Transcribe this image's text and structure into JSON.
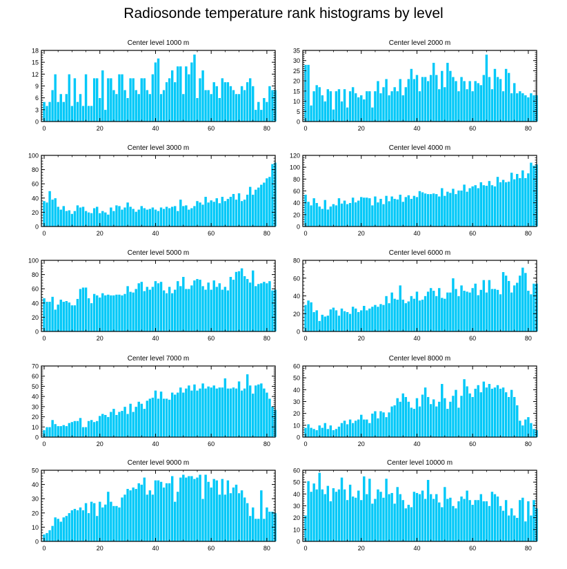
{
  "title": "Radiosonde temperature rank histograms by level",
  "colors": {
    "bar": "#00c8f8",
    "bar_edge": "#ffffff",
    "axis": "#000000",
    "background": "#ffffff"
  },
  "chart_data": [
    {
      "type": "bar",
      "title": "Center level 1000 m",
      "xlabel": "",
      "ylabel": "",
      "xlim": [
        -1,
        83
      ],
      "ylim": [
        0,
        18
      ],
      "xticks": [
        0,
        20,
        40,
        60,
        80
      ],
      "yticks": [
        0,
        3,
        6,
        9,
        12,
        15,
        18
      ],
      "values": [
        5,
        4,
        5,
        8,
        12,
        5,
        7,
        5,
        7,
        12,
        4,
        11,
        5,
        7,
        4,
        12,
        4,
        4,
        11,
        11,
        6,
        13,
        3,
        11,
        11,
        8,
        7,
        12,
        12,
        8,
        6,
        11,
        11,
        8,
        7,
        11,
        11,
        8,
        7,
        12,
        15,
        16,
        7,
        8,
        10,
        11,
        13,
        10,
        14,
        14,
        7,
        14,
        12,
        15,
        17,
        6,
        11,
        13,
        8,
        8,
        7,
        10,
        9,
        6,
        11,
        10,
        10,
        9,
        8,
        7,
        7,
        9,
        8,
        10,
        11,
        9,
        3,
        5,
        3,
        6,
        5,
        9,
        8,
        8
      ]
    },
    {
      "type": "bar",
      "title": "Center level 2000 m",
      "xlabel": "",
      "ylabel": "",
      "xlim": [
        -1,
        83
      ],
      "ylim": [
        0,
        35
      ],
      "xticks": [
        0,
        20,
        40,
        60,
        80
      ],
      "yticks": [
        0,
        5,
        10,
        15,
        20,
        25,
        30,
        35
      ],
      "values": [
        28,
        28,
        8,
        15,
        18,
        17,
        13,
        10,
        16,
        15,
        6,
        15,
        16,
        10,
        16,
        7,
        15,
        17,
        14,
        12,
        13,
        11,
        15,
        15,
        7,
        15,
        20,
        14,
        17,
        21,
        13,
        15,
        17,
        15,
        21,
        13,
        17,
        21,
        26,
        21,
        23,
        15,
        22,
        22,
        20,
        23,
        29,
        23,
        16,
        25,
        17,
        29,
        25,
        22,
        20,
        15,
        22,
        20,
        16,
        20,
        15,
        20,
        19,
        18,
        23,
        33,
        22,
        16,
        26,
        22,
        21,
        15,
        26,
        24,
        14,
        19,
        14,
        15,
        14,
        13,
        12,
        14,
        13,
        13
      ]
    },
    {
      "type": "bar",
      "title": "Center level 3000 m",
      "xlabel": "",
      "ylabel": "",
      "xlim": [
        -1,
        83
      ],
      "ylim": [
        0,
        100
      ],
      "xticks": [
        0,
        20,
        40,
        60,
        80
      ],
      "yticks": [
        0,
        20,
        40,
        60,
        80,
        100
      ],
      "values": [
        36,
        34,
        50,
        38,
        40,
        28,
        24,
        29,
        22,
        23,
        18,
        22,
        30,
        27,
        28,
        22,
        20,
        19,
        26,
        28,
        19,
        22,
        20,
        17,
        27,
        22,
        30,
        29,
        24,
        27,
        34,
        28,
        25,
        21,
        24,
        29,
        26,
        24,
        25,
        27,
        24,
        22,
        27,
        25,
        28,
        26,
        28,
        29,
        22,
        38,
        29,
        30,
        24,
        26,
        29,
        36,
        34,
        31,
        42,
        34,
        37,
        35,
        40,
        33,
        42,
        36,
        39,
        42,
        46,
        38,
        47,
        36,
        38,
        45,
        56,
        45,
        52,
        55,
        59,
        62,
        68,
        70,
        88,
        90
      ]
    },
    {
      "type": "bar",
      "title": "Center level 4000 m",
      "xlabel": "",
      "ylabel": "",
      "xlim": [
        -1,
        83
      ],
      "ylim": [
        0,
        120
      ],
      "xticks": [
        0,
        20,
        40,
        60,
        80
      ],
      "yticks": [
        0,
        20,
        40,
        60,
        80,
        100,
        120
      ],
      "values": [
        54,
        42,
        36,
        48,
        40,
        34,
        30,
        45,
        29,
        34,
        38,
        36,
        48,
        39,
        44,
        38,
        40,
        49,
        41,
        44,
        50,
        49,
        49,
        48,
        36,
        51,
        41,
        47,
        38,
        52,
        43,
        51,
        47,
        46,
        54,
        42,
        50,
        53,
        47,
        52,
        50,
        60,
        58,
        56,
        55,
        55,
        56,
        55,
        51,
        65,
        52,
        59,
        57,
        64,
        55,
        61,
        61,
        71,
        59,
        65,
        68,
        70,
        65,
        75,
        70,
        69,
        77,
        70,
        68,
        84,
        75,
        79,
        75,
        76,
        91,
        80,
        89,
        82,
        95,
        82,
        90,
        108,
        103,
        105
      ]
    },
    {
      "type": "bar",
      "title": "Center level 5000 m",
      "xlabel": "",
      "ylabel": "",
      "xlim": [
        -1,
        83
      ],
      "ylim": [
        0,
        100
      ],
      "xticks": [
        0,
        20,
        40,
        60,
        80
      ],
      "yticks": [
        0,
        20,
        40,
        60,
        80,
        100
      ],
      "values": [
        47,
        42,
        42,
        49,
        31,
        38,
        45,
        42,
        43,
        41,
        37,
        37,
        46,
        60,
        62,
        62,
        47,
        40,
        53,
        51,
        48,
        54,
        51,
        52,
        51,
        51,
        52,
        52,
        51,
        53,
        64,
        56,
        55,
        60,
        68,
        70,
        57,
        63,
        59,
        63,
        71,
        68,
        70,
        58,
        54,
        63,
        54,
        59,
        71,
        64,
        77,
        60,
        60,
        65,
        72,
        74,
        73,
        64,
        59,
        69,
        59,
        72,
        63,
        68,
        59,
        63,
        58,
        77,
        73,
        84,
        85,
        89,
        78,
        74,
        69,
        86,
        64,
        67,
        68,
        70,
        68,
        71,
        58,
        59
      ]
    },
    {
      "type": "bar",
      "title": "Center level 6000 m",
      "xlabel": "",
      "ylabel": "",
      "xlim": [
        -1,
        83
      ],
      "ylim": [
        0,
        80
      ],
      "xticks": [
        0,
        20,
        40,
        60,
        80
      ],
      "yticks": [
        0,
        20,
        40,
        60,
        80
      ],
      "values": [
        30,
        35,
        33,
        22,
        24,
        12,
        19,
        17,
        18,
        25,
        27,
        24,
        18,
        26,
        23,
        22,
        20,
        28,
        26,
        22,
        24,
        29,
        24,
        26,
        28,
        30,
        28,
        31,
        30,
        40,
        32,
        44,
        37,
        36,
        52,
        36,
        32,
        34,
        40,
        37,
        45,
        35,
        36,
        40,
        45,
        49,
        46,
        40,
        49,
        38,
        37,
        44,
        44,
        60,
        48,
        40,
        52,
        46,
        45,
        44,
        49,
        54,
        41,
        47,
        58,
        44,
        58,
        48,
        48,
        47,
        42,
        67,
        63,
        57,
        44,
        52,
        55,
        63,
        72,
        66,
        46,
        42,
        54,
        54
      ]
    },
    {
      "type": "bar",
      "title": "Center level 7000 m",
      "xlabel": "",
      "ylabel": "",
      "xlim": [
        -1,
        83
      ],
      "ylim": [
        0,
        70
      ],
      "xticks": [
        0,
        20,
        40,
        60,
        80
      ],
      "yticks": [
        0,
        10,
        20,
        30,
        40,
        50,
        60,
        70
      ],
      "values": [
        7,
        10,
        10,
        17,
        13,
        11,
        11,
        12,
        11,
        14,
        15,
        16,
        16,
        19,
        10,
        10,
        16,
        17,
        15,
        16,
        21,
        23,
        22,
        20,
        25,
        28,
        22,
        25,
        26,
        30,
        23,
        33,
        25,
        30,
        35,
        33,
        28,
        36,
        38,
        39,
        46,
        38,
        45,
        38,
        38,
        37,
        44,
        42,
        44,
        49,
        44,
        48,
        51,
        46,
        52,
        46,
        48,
        53,
        48,
        50,
        49,
        51,
        48,
        49,
        49,
        58,
        48,
        48,
        49,
        48,
        55,
        46,
        48,
        62,
        51,
        43,
        51,
        52,
        53,
        48,
        44,
        38,
        30,
        27
      ]
    },
    {
      "type": "bar",
      "title": "Center level 8000 m",
      "xlabel": "",
      "ylabel": "",
      "xlim": [
        -1,
        83
      ],
      "ylim": [
        0,
        60
      ],
      "xticks": [
        0,
        20,
        40,
        60,
        80
      ],
      "yticks": [
        0,
        10,
        20,
        30,
        40,
        50,
        60
      ],
      "values": [
        8,
        11,
        8,
        7,
        6,
        10,
        8,
        12,
        7,
        10,
        6,
        7,
        9,
        12,
        14,
        11,
        15,
        12,
        14,
        15,
        19,
        15,
        15,
        12,
        20,
        22,
        16,
        22,
        21,
        17,
        21,
        26,
        27,
        33,
        30,
        37,
        34,
        30,
        25,
        24,
        33,
        26,
        36,
        42,
        34,
        28,
        32,
        26,
        30,
        45,
        33,
        24,
        30,
        35,
        40,
        25,
        35,
        49,
        43,
        37,
        34,
        41,
        44,
        38,
        47,
        42,
        45,
        41,
        42,
        44,
        41,
        42,
        38,
        34,
        40,
        34,
        27,
        14,
        10,
        15,
        17,
        12,
        7,
        6
      ]
    },
    {
      "type": "bar",
      "title": "Center level 9000 m",
      "xlabel": "",
      "ylabel": "",
      "xlim": [
        -1,
        83
      ],
      "ylim": [
        0,
        50
      ],
      "xticks": [
        0,
        20,
        40,
        60,
        80
      ],
      "yticks": [
        0,
        10,
        20,
        30,
        40,
        50
      ],
      "values": [
        5,
        6,
        8,
        11,
        17,
        16,
        14,
        17,
        18,
        20,
        22,
        23,
        22,
        24,
        22,
        27,
        20,
        28,
        27,
        18,
        28,
        24,
        26,
        35,
        28,
        25,
        25,
        24,
        31,
        33,
        37,
        36,
        38,
        37,
        41,
        40,
        45,
        33,
        36,
        33,
        43,
        43,
        42,
        38,
        41,
        41,
        46,
        28,
        35,
        45,
        47,
        45,
        46,
        46,
        44,
        45,
        47,
        30,
        47,
        42,
        38,
        44,
        43,
        33,
        44,
        33,
        43,
        34,
        38,
        40,
        34,
        36,
        31,
        27,
        18,
        24,
        16,
        16,
        36,
        16,
        24,
        21,
        21,
        20
      ]
    },
    {
      "type": "bar",
      "title": "Center level 10000 m",
      "xlabel": "",
      "ylabel": "",
      "xlim": [
        -1,
        83
      ],
      "ylim": [
        0,
        60
      ],
      "xticks": [
        0,
        20,
        40,
        60,
        80
      ],
      "yticks": [
        0,
        10,
        20,
        30,
        40,
        50,
        60
      ],
      "values": [
        22,
        51,
        42,
        49,
        44,
        58,
        44,
        40,
        47,
        34,
        45,
        42,
        44,
        54,
        44,
        35,
        48,
        38,
        37,
        43,
        35,
        55,
        40,
        53,
        32,
        36,
        44,
        42,
        37,
        53,
        40,
        41,
        32,
        46,
        40,
        35,
        28,
        31,
        29,
        42,
        41,
        40,
        43,
        36,
        52,
        40,
        36,
        40,
        33,
        29,
        46,
        36,
        37,
        30,
        28,
        34,
        38,
        36,
        43,
        35,
        31,
        35,
        35,
        40,
        34,
        34,
        30,
        42,
        40,
        38,
        30,
        26,
        35,
        22,
        28,
        22,
        20,
        35,
        37,
        17,
        34,
        22,
        35,
        28
      ]
    }
  ]
}
